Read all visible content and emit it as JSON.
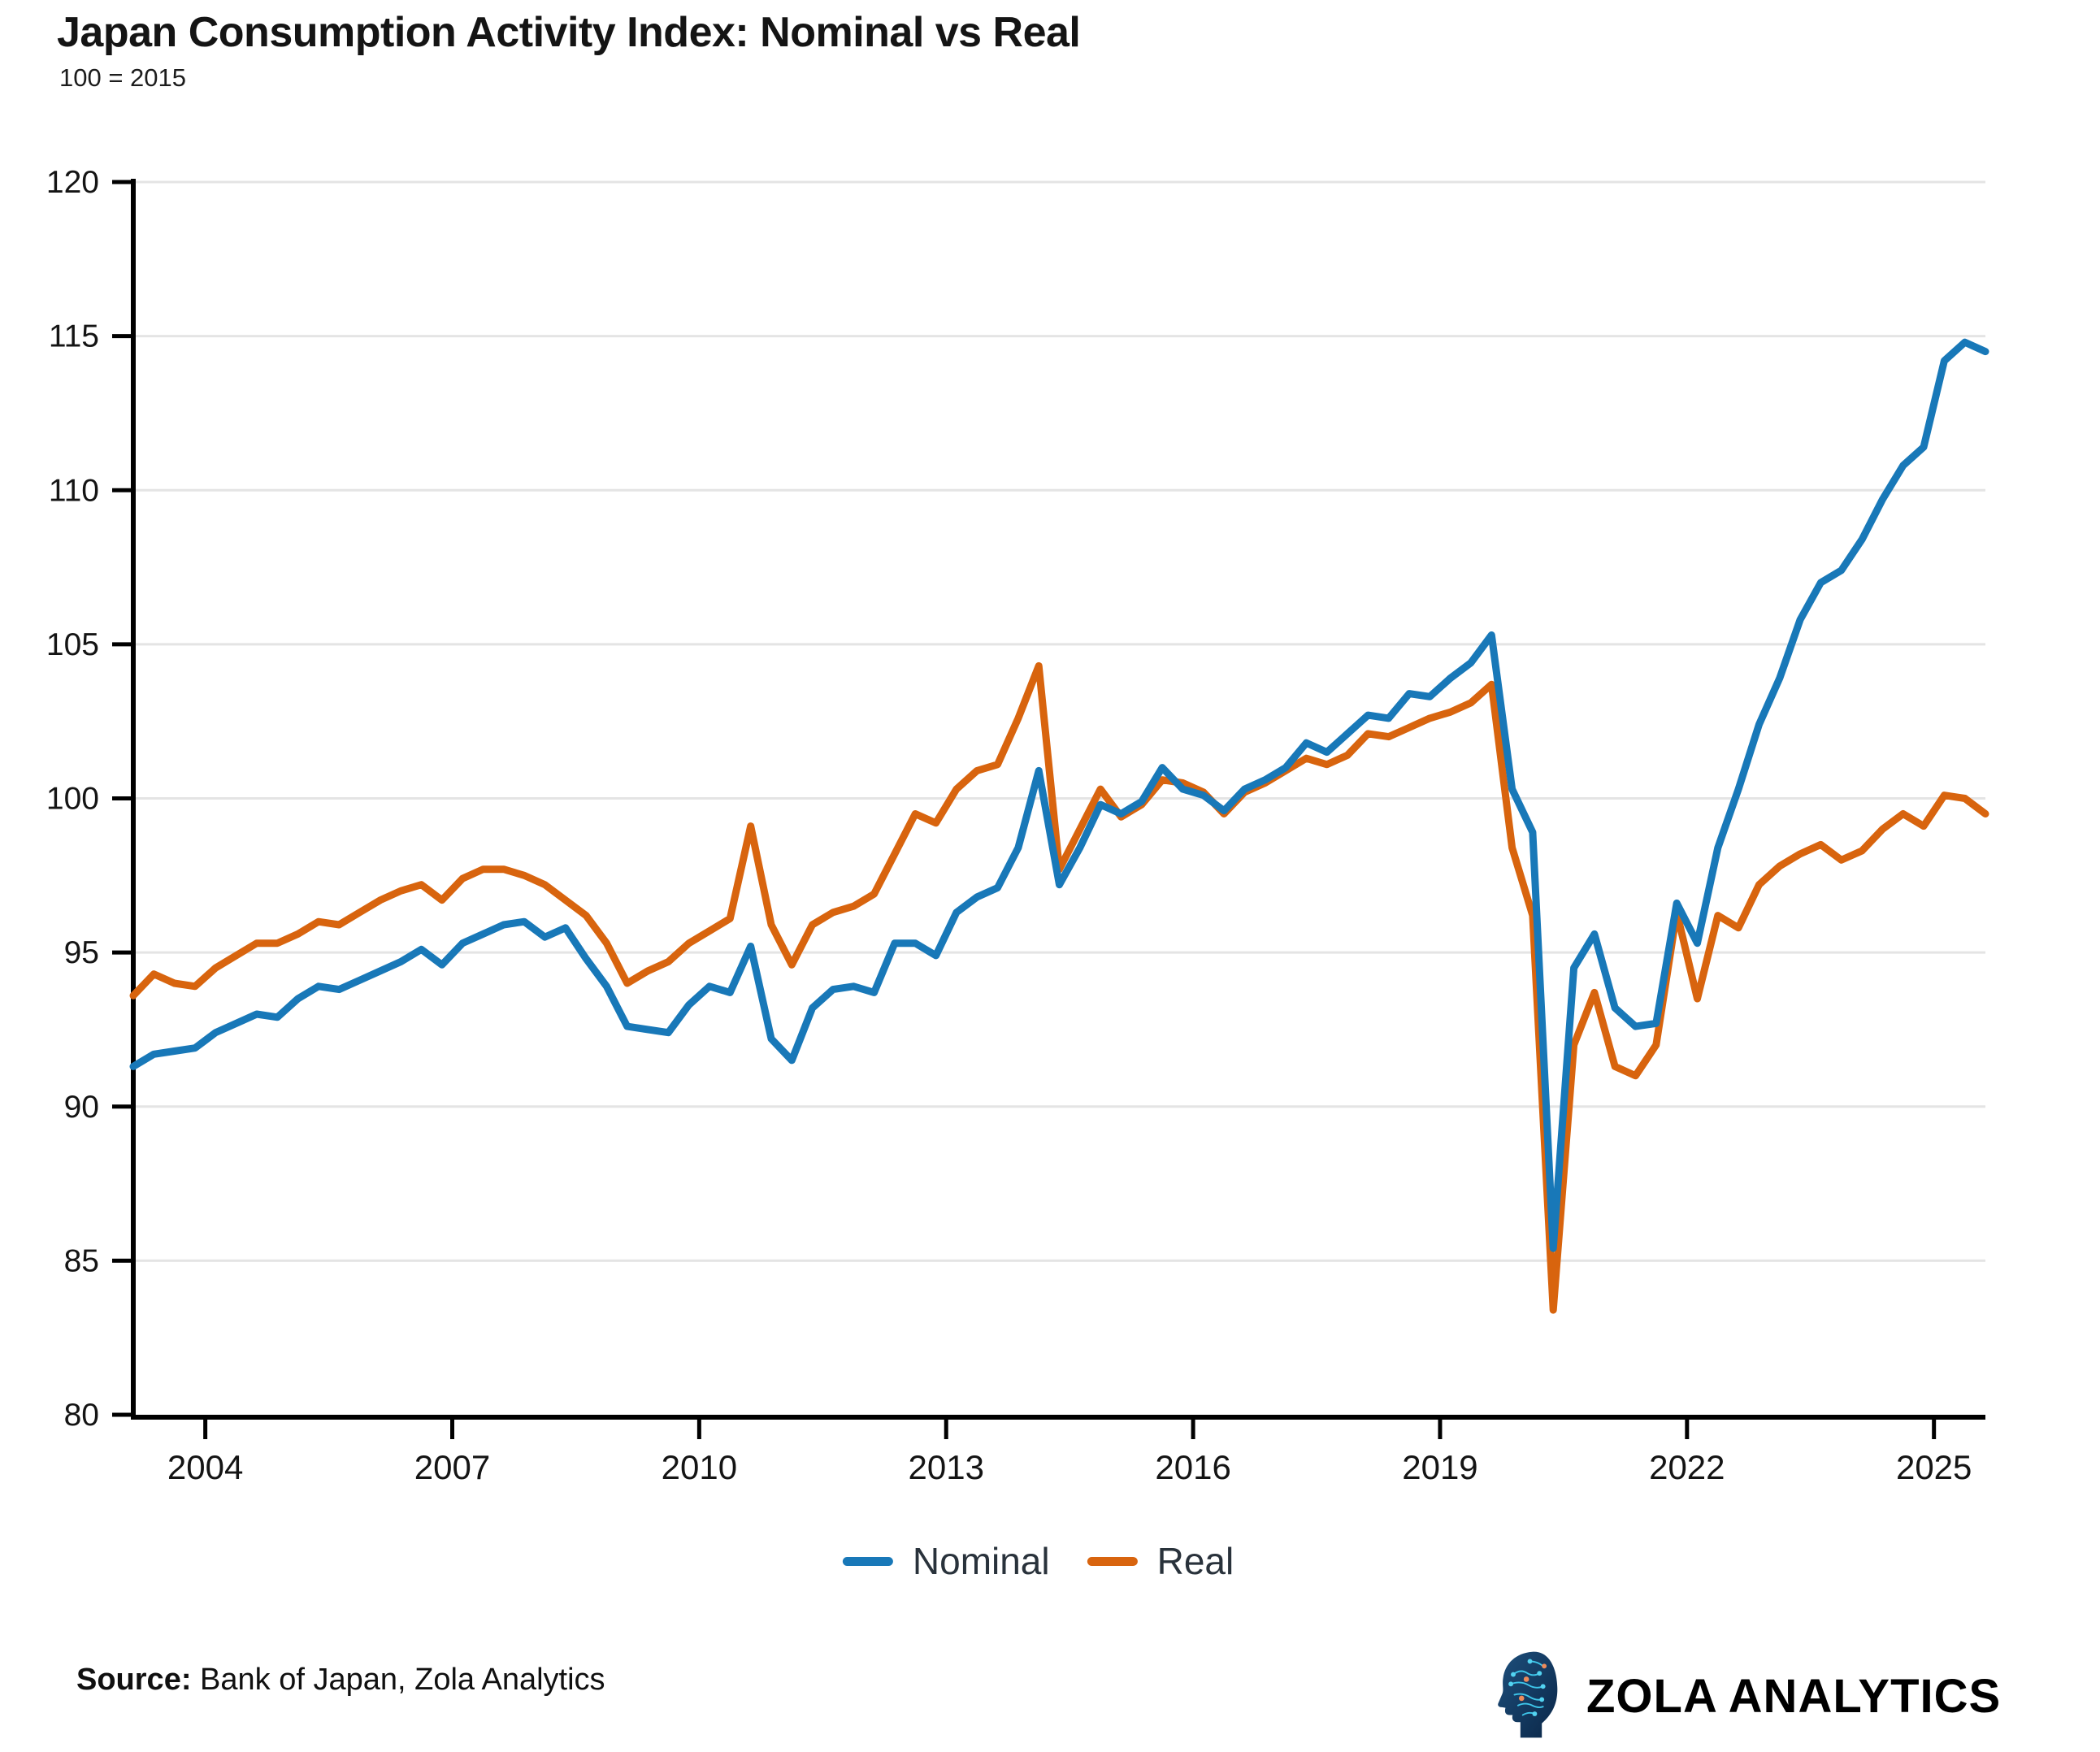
{
  "title": "Japan Consumption Activity Index: Nominal vs Real",
  "subtitle": "100 = 2015",
  "colors": {
    "nominal": "#1878b8",
    "real": "#d8640e",
    "grid": "#e4e4e4",
    "axis": "#000000",
    "tick_label": "#141414",
    "legend_text": "#29323b"
  },
  "chart_data": {
    "type": "line",
    "title": "Japan Consumption Activity Index: Nominal vs Real",
    "subtitle": "100 = 2015",
    "xlabel": "",
    "ylabel": "",
    "x_start": 2003.125,
    "x_step": 0.25,
    "x_ticks": [
      2004,
      2007,
      2010,
      2013,
      2016,
      2019,
      2022,
      2025
    ],
    "ylim": [
      80,
      120
    ],
    "y_ticks": [
      80,
      85,
      90,
      95,
      100,
      105,
      110,
      115,
      120
    ],
    "grid": "horizontal",
    "legend_position": "bottom",
    "series": [
      {
        "name": "Nominal",
        "color": "#1878b8",
        "values": [
          91.3,
          91.7,
          91.8,
          91.9,
          92.4,
          92.7,
          93.0,
          92.9,
          93.5,
          93.9,
          93.8,
          94.1,
          94.4,
          94.7,
          95.1,
          94.6,
          95.3,
          95.6,
          95.9,
          96.0,
          95.5,
          95.8,
          94.8,
          93.9,
          92.6,
          92.5,
          92.4,
          93.3,
          93.9,
          93.7,
          95.2,
          92.2,
          91.5,
          93.2,
          93.8,
          93.9,
          93.7,
          95.3,
          95.3,
          94.9,
          96.3,
          96.8,
          97.1,
          98.4,
          100.9,
          97.2,
          98.4,
          99.8,
          99.5,
          99.9,
          101.0,
          100.3,
          100.1,
          99.6,
          100.3,
          100.6,
          101.0,
          101.8,
          101.5,
          102.1,
          102.7,
          102.6,
          103.4,
          103.3,
          103.9,
          104.4,
          105.3,
          100.3,
          98.9,
          85.4,
          94.5,
          95.6,
          93.2,
          92.6,
          92.7,
          96.6,
          95.3,
          98.4,
          100.3,
          102.4,
          103.9,
          105.8,
          107.0,
          107.4,
          108.4,
          109.7,
          110.8,
          111.4,
          114.2,
          114.8,
          114.5
        ]
      },
      {
        "name": "Real",
        "color": "#d8640e",
        "values": [
          93.6,
          94.3,
          94.0,
          93.9,
          94.5,
          94.9,
          95.3,
          95.3,
          95.6,
          96.0,
          95.9,
          96.3,
          96.7,
          97.0,
          97.2,
          96.7,
          97.4,
          97.7,
          97.7,
          97.5,
          97.2,
          96.7,
          96.2,
          95.3,
          94.0,
          94.4,
          94.7,
          95.3,
          95.7,
          96.1,
          99.1,
          95.9,
          94.6,
          95.9,
          96.3,
          96.5,
          96.9,
          98.2,
          99.5,
          99.2,
          100.3,
          100.9,
          101.1,
          102.6,
          104.3,
          97.7,
          99.0,
          100.3,
          99.4,
          99.8,
          100.6,
          100.5,
          100.2,
          99.5,
          100.2,
          100.5,
          100.9,
          101.3,
          101.1,
          101.4,
          102.1,
          102.0,
          102.3,
          102.6,
          102.8,
          103.1,
          103.7,
          98.4,
          96.2,
          83.4,
          92.0,
          93.7,
          91.3,
          91.0,
          92.0,
          96.3,
          93.5,
          96.2,
          95.8,
          97.2,
          97.8,
          98.2,
          98.5,
          98.0,
          98.3,
          99.0,
          99.5,
          99.1,
          100.1,
          100.0,
          99.5
        ]
      }
    ]
  },
  "footer": {
    "source_label": "Source:",
    "source_text": " Bank of Japan, Zola Analytics",
    "brand": "ZOLA ANALYTICS",
    "brand_icon": "circuit-head-icon"
  }
}
